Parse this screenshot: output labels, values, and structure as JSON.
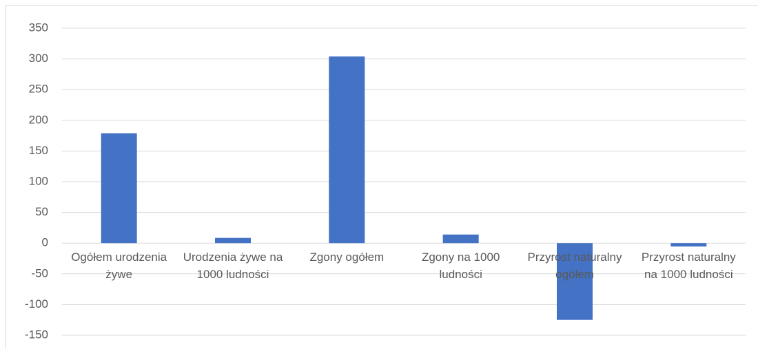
{
  "chart_data": {
    "type": "bar",
    "categories": [
      "Ogółem urodzenia żywe",
      "Urodzenia żywe na 1000 ludności",
      "Zgony ogółem",
      "Zgony na 1000 ludności",
      "Przyrost naturalny ogółem",
      "Przyrost naturalny na 1000 ludności"
    ],
    "values": [
      179,
      8.5,
      304,
      14,
      -125,
      -5.5
    ],
    "color": "#4472c4",
    "ylim": [
      -150,
      350
    ],
    "yticks": [
      -150,
      -100,
      -50,
      0,
      50,
      100,
      150,
      200,
      250,
      300,
      350
    ],
    "grid": true
  }
}
